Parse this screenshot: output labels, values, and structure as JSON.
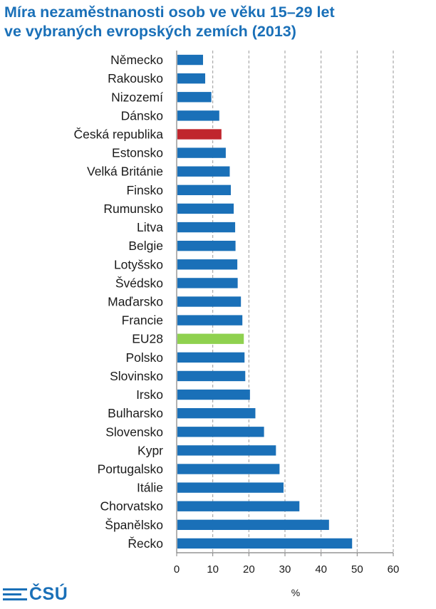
{
  "title": {
    "line1": "Míra nezaměstnanosti osob ve věku 15–29 let",
    "line2": "ve vybraných evropských zemích (2013)"
  },
  "logo": {
    "text": "ČSÚ"
  },
  "colors": {
    "default": "#1a70b8",
    "czech": "#c0262d",
    "eu": "#8fd14f",
    "title": "#1a70b8"
  },
  "chart_data": {
    "type": "bar",
    "orientation": "horizontal",
    "title": "Míra nezaměstnanosti osob ve věku 15–29 let ve vybraných evropských zemích (2013)",
    "xlabel": "%",
    "ylabel": "",
    "xlim": [
      0,
      60
    ],
    "xticks": [
      0,
      10,
      20,
      30,
      40,
      50,
      60
    ],
    "grid": "vertical dashed",
    "categories": [
      "Německo",
      "Rakousko",
      "Nizozemí",
      "Dánsko",
      "Česká republika",
      "Estonsko",
      "Velká Británie",
      "Finsko",
      "Rumunsko",
      "Litva",
      "Belgie",
      "Lotyšsko",
      "Švédsko",
      "Maďarsko",
      "Francie",
      "EU28",
      "Polsko",
      "Slovinsko",
      "Irsko",
      "Bulharsko",
      "Slovensko",
      "Kypr",
      "Portugalsko",
      "Itálie",
      "Chorvatsko",
      "Španělsko",
      "Řecko"
    ],
    "values": [
      7.3,
      7.9,
      9.6,
      11.8,
      12.4,
      13.6,
      14.7,
      15.0,
      15.8,
      16.2,
      16.3,
      16.8,
      16.9,
      17.8,
      18.2,
      18.6,
      18.8,
      19.0,
      20.3,
      21.8,
      24.2,
      27.5,
      28.5,
      29.6,
      34.0,
      42.2,
      48.6
    ],
    "highlights": {
      "Česká republika": "czech",
      "EU28": "eu"
    }
  }
}
